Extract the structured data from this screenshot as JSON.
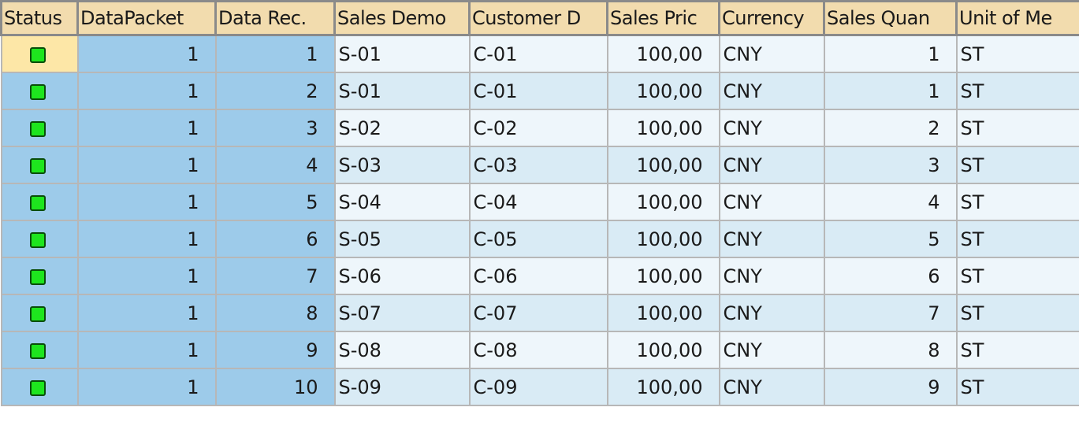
{
  "columns": [
    "Status",
    "DataPacket",
    "Data Rec.",
    "Sales Demo",
    "Customer D",
    "Sales Pric",
    "Currency",
    "Sales Quan",
    "Unit of Me"
  ],
  "colors": {
    "header": "#f2dcae",
    "key_column": "#9dcbea",
    "row_light": "#eef6fb",
    "row_dark": "#d9ebf5",
    "status_green": "#1ee51e",
    "selected": "#fde7a7"
  },
  "rows": [
    {
      "status": "green-led-icon",
      "packet": "1",
      "record": "1",
      "sales": "S-01",
      "customer": "C-01",
      "price": "100,00",
      "currency": "CNY",
      "qty": "1",
      "unit": "ST"
    },
    {
      "status": "green-led-icon",
      "packet": "1",
      "record": "2",
      "sales": "S-01",
      "customer": "C-01",
      "price": "100,00",
      "currency": "CNY",
      "qty": "1",
      "unit": "ST"
    },
    {
      "status": "green-led-icon",
      "packet": "1",
      "record": "3",
      "sales": "S-02",
      "customer": "C-02",
      "price": "100,00",
      "currency": "CNY",
      "qty": "2",
      "unit": "ST"
    },
    {
      "status": "green-led-icon",
      "packet": "1",
      "record": "4",
      "sales": "S-03",
      "customer": "C-03",
      "price": "100,00",
      "currency": "CNY",
      "qty": "3",
      "unit": "ST"
    },
    {
      "status": "green-led-icon",
      "packet": "1",
      "record": "5",
      "sales": "S-04",
      "customer": "C-04",
      "price": "100,00",
      "currency": "CNY",
      "qty": "4",
      "unit": "ST"
    },
    {
      "status": "green-led-icon",
      "packet": "1",
      "record": "6",
      "sales": "S-05",
      "customer": "C-05",
      "price": "100,00",
      "currency": "CNY",
      "qty": "5",
      "unit": "ST"
    },
    {
      "status": "green-led-icon",
      "packet": "1",
      "record": "7",
      "sales": "S-06",
      "customer": "C-06",
      "price": "100,00",
      "currency": "CNY",
      "qty": "6",
      "unit": "ST"
    },
    {
      "status": "green-led-icon",
      "packet": "1",
      "record": "8",
      "sales": "S-07",
      "customer": "C-07",
      "price": "100,00",
      "currency": "CNY",
      "qty": "7",
      "unit": "ST"
    },
    {
      "status": "green-led-icon",
      "packet": "1",
      "record": "9",
      "sales": "S-08",
      "customer": "C-08",
      "price": "100,00",
      "currency": "CNY",
      "qty": "8",
      "unit": "ST"
    },
    {
      "status": "green-led-icon",
      "packet": "1",
      "record": "10",
      "sales": "S-09",
      "customer": "C-09",
      "price": "100,00",
      "currency": "CNY",
      "qty": "9",
      "unit": "ST"
    }
  ]
}
